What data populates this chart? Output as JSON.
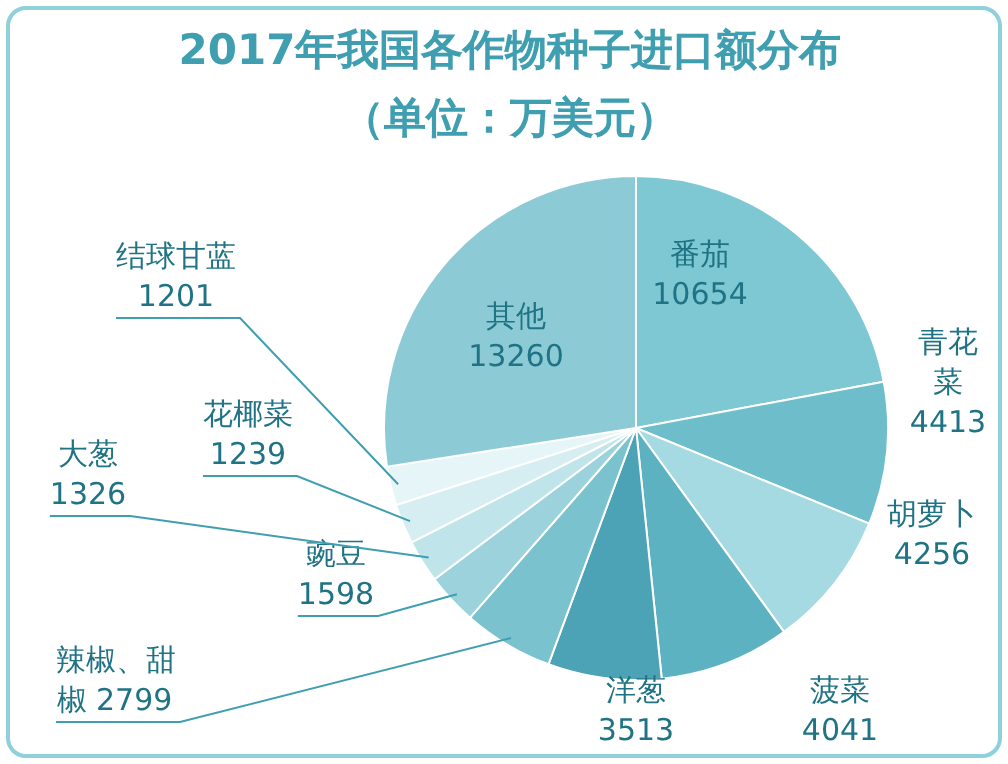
{
  "chart_data": {
    "type": "pie",
    "title": "2017年我国各作物种子进口额分布（单位：万美元）",
    "categories": [
      "番茄",
      "青花菜",
      "胡萝卜",
      "菠菜",
      "洋葱",
      "辣椒、甜椒",
      "豌豆",
      "大葱",
      "花椰菜",
      "结球甘蓝",
      "其他"
    ],
    "values": [
      10654,
      4413,
      4256,
      4041,
      3513,
      2799,
      1598,
      1326,
      1239,
      1201,
      13260
    ],
    "colors": [
      "#7ec8d3",
      "#6dbdca",
      "#a6dae2",
      "#5db2c2",
      "#4ba3b5",
      "#79c2ce",
      "#9bd2dc",
      "#bfe4ea",
      "#d6eef2",
      "#e6f5f7",
      "#8ccbd6"
    ],
    "data_labels": true
  }
}
